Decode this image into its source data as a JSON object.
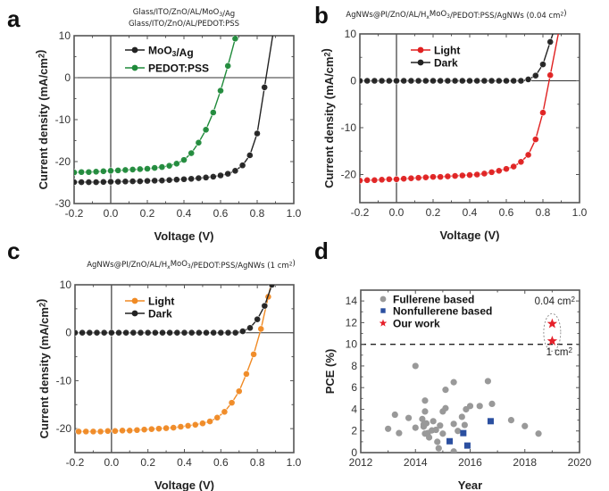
{
  "chart_data": [
    {
      "id": "a",
      "type": "line",
      "panel_label": "a",
      "title_lines": [
        "Glass/ITO/ZnO/AL/MoO3/Ag",
        "Glass/ITO/ZnO/AL/PEDOT:PSS"
      ],
      "xlabel": "Voltage (V)",
      "ylabel": "Current density (mA/cm2)",
      "xlim": [
        -0.2,
        1.0
      ],
      "ylim": [
        -30,
        10
      ],
      "xticks": [
        -0.2,
        0.0,
        0.2,
        0.4,
        0.6,
        0.8,
        1.0
      ],
      "xtick_labels": [
        "-0.2",
        "0.0",
        "0.2",
        "0.4",
        "0.6",
        "0.8",
        "1.0"
      ],
      "yticks": [
        -30,
        -20,
        -10,
        0,
        10
      ],
      "ytick_labels": [
        "-30",
        "-20",
        "-10",
        "0",
        "10"
      ],
      "legend_position": "top-left",
      "series": [
        {
          "name": "MoO3/Ag",
          "color": "#222222",
          "x": [
            -0.2,
            -0.16,
            -0.12,
            -0.08,
            -0.04,
            0.0,
            0.04,
            0.08,
            0.12,
            0.16,
            0.2,
            0.24,
            0.28,
            0.32,
            0.36,
            0.4,
            0.44,
            0.48,
            0.52,
            0.56,
            0.6,
            0.64,
            0.68,
            0.72,
            0.76,
            0.8,
            0.84
          ],
          "y": [
            -24.9,
            -24.9,
            -24.9,
            -24.9,
            -24.85,
            -24.8,
            -24.8,
            -24.75,
            -24.7,
            -24.7,
            -24.6,
            -24.55,
            -24.5,
            -24.4,
            -24.3,
            -24.2,
            -24.1,
            -23.95,
            -23.8,
            -23.6,
            -23.3,
            -22.9,
            -22.2,
            -20.9,
            -18.5,
            -13.3,
            -2.3
          ]
        },
        {
          "name": "PEDOT:PSS",
          "color": "#1f8a3a",
          "x": [
            -0.2,
            -0.16,
            -0.12,
            -0.08,
            -0.04,
            0.0,
            0.04,
            0.08,
            0.12,
            0.16,
            0.2,
            0.24,
            0.28,
            0.32,
            0.36,
            0.4,
            0.44,
            0.48,
            0.52,
            0.56,
            0.6,
            0.64,
            0.68
          ],
          "y": [
            -22.6,
            -22.5,
            -22.5,
            -22.4,
            -22.3,
            -22.2,
            -22.1,
            -22.0,
            -21.9,
            -21.8,
            -21.7,
            -21.5,
            -21.3,
            -21.0,
            -20.5,
            -19.6,
            -18.0,
            -15.5,
            -12.4,
            -8.3,
            -3.1,
            2.8,
            9.3
          ]
        }
      ]
    },
    {
      "id": "b",
      "type": "line",
      "panel_label": "b",
      "title_lines": [
        "AgNWs@PI/ZnO/AL/HxMoO3/PEDOT:PSS/AgNWs  (0.04 cm2)"
      ],
      "xlabel": "Voltage (V)",
      "ylabel": "Current density (mA/cm2)",
      "xlim": [
        -0.2,
        1.0
      ],
      "ylim": [
        -26,
        10
      ],
      "xticks": [
        -0.2,
        0.0,
        0.2,
        0.4,
        0.6,
        0.8,
        1.0
      ],
      "xtick_labels": [
        "-0.2",
        "0.0",
        "0.2",
        "0.4",
        "0.6",
        "0.8",
        "1.0"
      ],
      "yticks": [
        -20,
        -10,
        0,
        10
      ],
      "ytick_labels": [
        "-20",
        "-10",
        "0",
        "10"
      ],
      "legend_position": "top-left",
      "series": [
        {
          "name": "Light",
          "color": "#e02020",
          "x": [
            -0.2,
            -0.16,
            -0.12,
            -0.08,
            -0.04,
            0.0,
            0.04,
            0.08,
            0.12,
            0.16,
            0.2,
            0.24,
            0.28,
            0.32,
            0.36,
            0.4,
            0.44,
            0.48,
            0.52,
            0.56,
            0.6,
            0.64,
            0.68,
            0.72,
            0.76,
            0.8,
            0.84
          ],
          "y": [
            -21.3,
            -21.2,
            -21.2,
            -21.1,
            -21.0,
            -21.0,
            -20.9,
            -20.8,
            -20.7,
            -20.6,
            -20.5,
            -20.5,
            -20.4,
            -20.3,
            -20.2,
            -20.1,
            -20.0,
            -19.8,
            -19.5,
            -19.2,
            -18.8,
            -18.3,
            -17.3,
            -15.8,
            -12.5,
            -6.8,
            1.2
          ]
        },
        {
          "name": "Dark",
          "color": "#222222",
          "x": [
            -0.2,
            -0.16,
            -0.12,
            -0.08,
            -0.04,
            0.0,
            0.04,
            0.08,
            0.12,
            0.16,
            0.2,
            0.24,
            0.28,
            0.32,
            0.36,
            0.4,
            0.44,
            0.48,
            0.52,
            0.56,
            0.6,
            0.64,
            0.68,
            0.72,
            0.76,
            0.8,
            0.84
          ],
          "y": [
            0,
            0,
            0,
            0,
            0,
            0,
            0,
            0,
            0,
            0,
            0,
            0,
            0,
            0,
            0,
            0,
            0,
            0,
            0,
            0,
            0,
            0,
            0,
            0.3,
            1.1,
            3.5,
            8.3
          ]
        }
      ]
    },
    {
      "id": "c",
      "type": "line",
      "panel_label": "c",
      "title_lines": [
        "AgNWs@PI/ZnO/AL/HxMoO3/PEDOT:PSS/AgNWs  (1 cm2)"
      ],
      "xlabel": "Voltage (V)",
      "ylabel": "Current density (mA/cm2)",
      "xlim": [
        -0.2,
        1.0
      ],
      "ylim": [
        -25,
        10
      ],
      "xticks": [
        -0.2,
        0.0,
        0.2,
        0.4,
        0.6,
        0.8,
        1.0
      ],
      "xtick_labels": [
        "-0.2",
        "0.0",
        "0.2",
        "0.4",
        "0.6",
        "0.8",
        "1.0"
      ],
      "yticks": [
        -20,
        -10,
        0,
        10
      ],
      "ytick_labels": [
        "-20",
        "-10",
        "0",
        "10"
      ],
      "legend_position": "top-left",
      "series": [
        {
          "name": "Light",
          "color": "#f08a24",
          "x": [
            -0.18,
            -0.14,
            -0.1,
            -0.06,
            -0.02,
            0.02,
            0.06,
            0.1,
            0.14,
            0.18,
            0.22,
            0.26,
            0.3,
            0.34,
            0.38,
            0.42,
            0.46,
            0.5,
            0.54,
            0.58,
            0.62,
            0.66,
            0.7,
            0.74,
            0.78,
            0.82,
            0.86
          ],
          "y": [
            -20.6,
            -20.6,
            -20.6,
            -20.6,
            -20.5,
            -20.5,
            -20.4,
            -20.4,
            -20.3,
            -20.2,
            -20.1,
            -20.0,
            -19.9,
            -19.8,
            -19.6,
            -19.4,
            -19.2,
            -18.9,
            -18.5,
            -17.7,
            -16.5,
            -14.6,
            -12.2,
            -8.6,
            -4.5,
            0.8,
            7.5
          ]
        },
        {
          "name": "Dark",
          "color": "#222222",
          "x": [
            -0.2,
            -0.16,
            -0.12,
            -0.08,
            -0.04,
            0.0,
            0.04,
            0.08,
            0.12,
            0.16,
            0.2,
            0.24,
            0.28,
            0.32,
            0.36,
            0.4,
            0.44,
            0.48,
            0.52,
            0.56,
            0.6,
            0.64,
            0.68,
            0.72,
            0.76,
            0.8,
            0.84,
            0.88
          ],
          "y": [
            0,
            0,
            0,
            0,
            0,
            0,
            0,
            0,
            0,
            0,
            0,
            0,
            0,
            0,
            0,
            0,
            0,
            0,
            0,
            0,
            0,
            0,
            0,
            0.3,
            1.0,
            2.8,
            5.6,
            10.0
          ]
        }
      ]
    },
    {
      "id": "d",
      "type": "scatter",
      "panel_label": "d",
      "xlabel": "Year",
      "ylabel": "PCE (%)",
      "xlim": [
        2012,
        2020
      ],
      "ylim": [
        0,
        15
      ],
      "xticks": [
        2012,
        2014,
        2016,
        2018,
        2020
      ],
      "xtick_labels": [
        "2012",
        "2014",
        "2016",
        "2018",
        "2020"
      ],
      "yticks": [
        0,
        2,
        4,
        6,
        8,
        10,
        12,
        14
      ],
      "ytick_labels": [
        "0",
        "2",
        "4",
        "6",
        "8",
        "10",
        "12",
        "14"
      ],
      "reference_line": 10,
      "legend_position": "top-left",
      "annotations": [
        "0.04 cm2",
        "1 cm2"
      ],
      "series": [
        {
          "name": "Fullerene based",
          "color": "#999999",
          "marker": "circle",
          "x": [
            2013.0,
            2013.25,
            2013.4,
            2013.75,
            2014.0,
            2014.0,
            2014.25,
            2014.3,
            2014.3,
            2014.35,
            2014.35,
            2014.35,
            2014.4,
            2014.45,
            2014.5,
            2014.6,
            2014.65,
            2014.75,
            2014.8,
            2014.85,
            2014.9,
            2015.0,
            2015.0,
            2015.1,
            2015.1,
            2015.4,
            2015.4,
            2015.4,
            2015.55,
            2015.7,
            2015.8,
            2015.85,
            2016.0,
            2016.35,
            2016.65,
            2016.8,
            2017.5,
            2018.0,
            2018.5
          ],
          "y": [
            2.2,
            3.5,
            1.8,
            3.2,
            8.0,
            2.3,
            3.1,
            2.6,
            2.4,
            4.8,
            3.8,
            1.75,
            2.7,
            1.8,
            1.4,
            2.05,
            2.9,
            2.1,
            1.0,
            0.4,
            2.5,
            3.8,
            1.75,
            4.1,
            5.8,
            6.5,
            2.65,
            0.1,
            2.0,
            3.3,
            2.55,
            4.0,
            4.3,
            4.3,
            6.6,
            4.5,
            3.0,
            2.45,
            1.75
          ]
        },
        {
          "name": "Nonfullerene based",
          "color": "#2b4fa0",
          "marker": "square",
          "x": [
            2015.25,
            2015.75,
            2015.9,
            2016.75
          ],
          "y": [
            1.05,
            1.8,
            0.65,
            2.9
          ]
        },
        {
          "name": "Our work",
          "color": "#e5202a",
          "marker": "star",
          "x": [
            2019.0,
            2019.0
          ],
          "y": [
            11.9,
            10.3
          ]
        }
      ]
    }
  ]
}
